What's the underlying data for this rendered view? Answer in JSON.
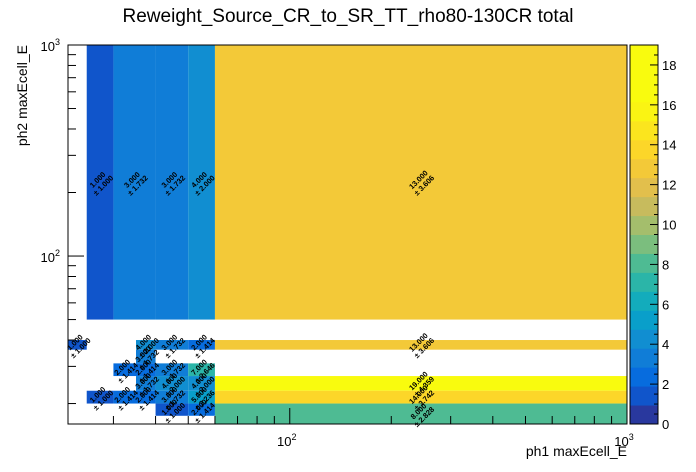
{
  "chart_data": {
    "type": "heatmap",
    "title": "Reweight_Source_CR_to_SR_TT_rho80-130CR total",
    "xlabel": "ph1 maxEcell_E",
    "ylabel": "ph2 maxEcell_E",
    "xscale": "log",
    "yscale": "log",
    "xlim": [
      22,
      1000
    ],
    "ylim": [
      16,
      1000
    ],
    "x_tick_labels": [
      "10^2",
      "10^3"
    ],
    "y_tick_labels": [
      "10^2",
      "10^3"
    ],
    "z_range": [
      0,
      19
    ],
    "z_ticks": [
      0,
      2,
      4,
      6,
      8,
      10,
      12,
      14,
      16,
      18
    ],
    "cells": [
      {
        "x": [
          22,
          25
        ],
        "y": [
          36,
          40
        ],
        "value": 1,
        "error": 1.0
      },
      {
        "x": [
          25,
          30
        ],
        "y": [
          50,
          1000
        ],
        "value": 1,
        "error": 1.0
      },
      {
        "x": [
          30,
          40
        ],
        "y": [
          50,
          1000
        ],
        "value": 3,
        "error": 1.732
      },
      {
        "x": [
          40,
          50
        ],
        "y": [
          50,
          1000
        ],
        "value": 3,
        "error": 1.732
      },
      {
        "x": [
          50,
          60
        ],
        "y": [
          50,
          1000
        ],
        "value": 4,
        "error": 2.0
      },
      {
        "x": [
          60,
          1000
        ],
        "y": [
          50,
          1000
        ],
        "value": 13,
        "error": 3.606
      },
      {
        "x": [
          25,
          30
        ],
        "y": [
          20,
          23
        ],
        "value": 1,
        "error": 1.0
      },
      {
        "x": [
          30,
          35
        ],
        "y": [
          27,
          31
        ],
        "value": 2,
        "error": 1.414
      },
      {
        "x": [
          30,
          35
        ],
        "y": [
          20,
          23
        ],
        "value": 2,
        "error": 1.414
      },
      {
        "x": [
          35,
          40
        ],
        "y": [
          36,
          40
        ],
        "value": 4,
        "error": 2.0
      },
      {
        "x": [
          35,
          40
        ],
        "y": [
          31,
          36
        ],
        "value": 3,
        "error": 1.732
      },
      {
        "x": [
          35,
          40
        ],
        "y": [
          27,
          31
        ],
        "value": 2,
        "error": 1.414
      },
      {
        "x": [
          35,
          40
        ],
        "y": [
          23,
          27
        ],
        "value": 3,
        "error": 1.732
      },
      {
        "x": [
          35,
          40
        ],
        "y": [
          20,
          23
        ],
        "value": 2,
        "error": 1.414
      },
      {
        "x": [
          40,
          50
        ],
        "y": [
          36,
          40
        ],
        "value": 3,
        "error": 1.732
      },
      {
        "x": [
          40,
          50
        ],
        "y": [
          27,
          31
        ],
        "value": 3,
        "error": 1.732
      },
      {
        "x": [
          40,
          50
        ],
        "y": [
          23,
          27
        ],
        "value": 4,
        "error": 2.0
      },
      {
        "x": [
          40,
          50
        ],
        "y": [
          20,
          23
        ],
        "value": 3,
        "error": 1.732
      },
      {
        "x": [
          40,
          50
        ],
        "y": [
          17.5,
          20
        ],
        "value": 1,
        "error": 1.0
      },
      {
        "x": [
          50,
          60
        ],
        "y": [
          36,
          40
        ],
        "value": 2,
        "error": 1.414
      },
      {
        "x": [
          50,
          60
        ],
        "y": [
          27,
          31
        ],
        "value": 7,
        "error": 2.646
      },
      {
        "x": [
          50,
          60
        ],
        "y": [
          23,
          27
        ],
        "value": 4,
        "error": 2.0
      },
      {
        "x": [
          50,
          60
        ],
        "y": [
          20,
          23
        ],
        "value": 5,
        "error": 2.236
      },
      {
        "x": [
          50,
          60
        ],
        "y": [
          17.5,
          20
        ],
        "value": 2,
        "error": 1.414
      },
      {
        "x": [
          60,
          1000
        ],
        "y": [
          36,
          40
        ],
        "value": 13,
        "error": 3.606
      },
      {
        "x": [
          60,
          1000
        ],
        "y": [
          23,
          27
        ],
        "value": 19,
        "error": 4.359
      },
      {
        "x": [
          60,
          1000
        ],
        "y": [
          20,
          23
        ],
        "value": 14,
        "error": 3.742
      },
      {
        "x": [
          60,
          1000
        ],
        "y": [
          16,
          20
        ],
        "value": 8,
        "error": 2.828
      }
    ]
  }
}
